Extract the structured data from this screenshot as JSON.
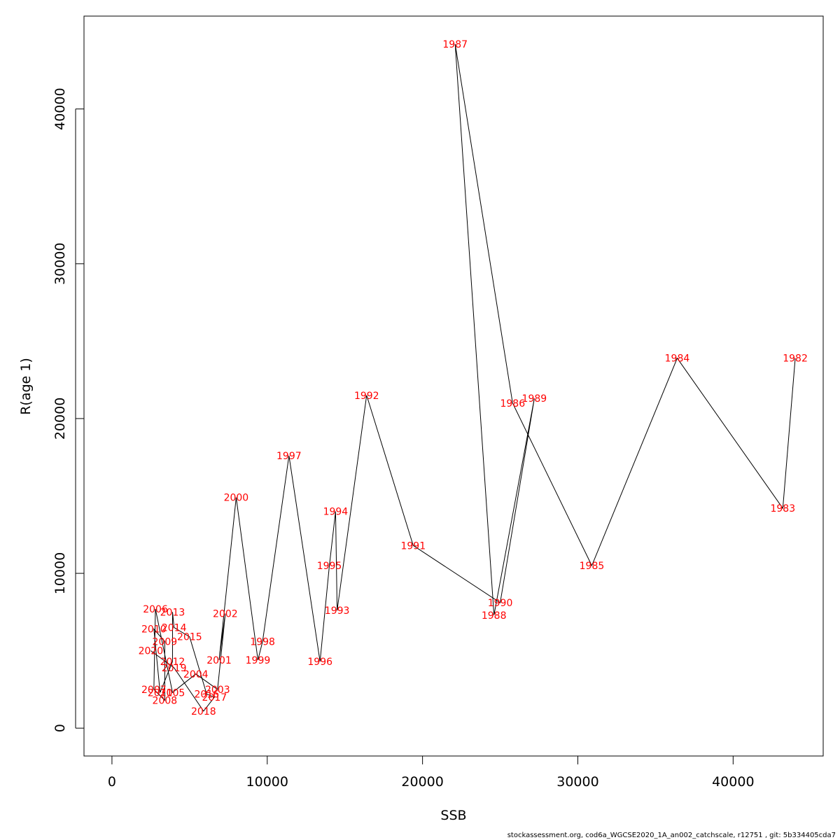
{
  "chart_data": {
    "type": "line",
    "xlabel": "SSB",
    "ylabel": "R(age 1)",
    "xlim": [
      -1800,
      45800
    ],
    "ylim": [
      -1800,
      46000
    ],
    "x_ticks": [
      0,
      10000,
      20000,
      30000,
      40000
    ],
    "y_ticks": [
      0,
      10000,
      20000,
      30000,
      40000
    ],
    "grid": false,
    "line_color": "#000000",
    "label_color": "#ff0000",
    "points": [
      {
        "year": "1982",
        "x": 44000,
        "y": 23900
      },
      {
        "year": "1983",
        "x": 43200,
        "y": 14200
      },
      {
        "year": "1984",
        "x": 36400,
        "y": 23900
      },
      {
        "year": "1985",
        "x": 30900,
        "y": 10500
      },
      {
        "year": "1986",
        "x": 25800,
        "y": 21000
      },
      {
        "year": "1987",
        "x": 22100,
        "y": 44200
      },
      {
        "year": "1988",
        "x": 24600,
        "y": 7300
      },
      {
        "year": "1989",
        "x": 27200,
        "y": 21300
      },
      {
        "year": "1990",
        "x": 25000,
        "y": 8100
      },
      {
        "year": "1991",
        "x": 19400,
        "y": 11800
      },
      {
        "year": "1992",
        "x": 16400,
        "y": 21500
      },
      {
        "year": "1993",
        "x": 14500,
        "y": 7600
      },
      {
        "year": "1994",
        "x": 14400,
        "y": 14000
      },
      {
        "year": "1995",
        "x": 14000,
        "y": 10500
      },
      {
        "year": "1996",
        "x": 13400,
        "y": 4300
      },
      {
        "year": "1997",
        "x": 11400,
        "y": 17600
      },
      {
        "year": "1998",
        "x": 9700,
        "y": 5600
      },
      {
        "year": "1999",
        "x": 9400,
        "y": 4400
      },
      {
        "year": "2000",
        "x": 8000,
        "y": 14900
      },
      {
        "year": "2001",
        "x": 6900,
        "y": 4400
      },
      {
        "year": "2002",
        "x": 7300,
        "y": 7400
      },
      {
        "year": "2003",
        "x": 6800,
        "y": 2500
      },
      {
        "year": "2004",
        "x": 5400,
        "y": 3500
      },
      {
        "year": "2005",
        "x": 3900,
        "y": 2300
      },
      {
        "year": "2006",
        "x": 2800,
        "y": 7700
      },
      {
        "year": "2007",
        "x": 2700,
        "y": 2500
      },
      {
        "year": "2008",
        "x": 3400,
        "y": 1800
      },
      {
        "year": "2009",
        "x": 3400,
        "y": 5600
      },
      {
        "year": "2010",
        "x": 2700,
        "y": 6400
      },
      {
        "year": "2011",
        "x": 3100,
        "y": 2300
      },
      {
        "year": "2012",
        "x": 3900,
        "y": 4300
      },
      {
        "year": "2013",
        "x": 3900,
        "y": 7500
      },
      {
        "year": "2014",
        "x": 4000,
        "y": 6500
      },
      {
        "year": "2015",
        "x": 5000,
        "y": 5900
      },
      {
        "year": "2016",
        "x": 6100,
        "y": 2200
      },
      {
        "year": "2017",
        "x": 6600,
        "y": 2000
      },
      {
        "year": "2018",
        "x": 5900,
        "y": 1100
      },
      {
        "year": "2019",
        "x": 4000,
        "y": 3900
      },
      {
        "year": "2020",
        "x": 2500,
        "y": 5000
      }
    ]
  },
  "footer": "stockassessment.org, cod6a_WGCSE2020_1A_an002_catchscale, r12751 , git: 5b334405cda7"
}
